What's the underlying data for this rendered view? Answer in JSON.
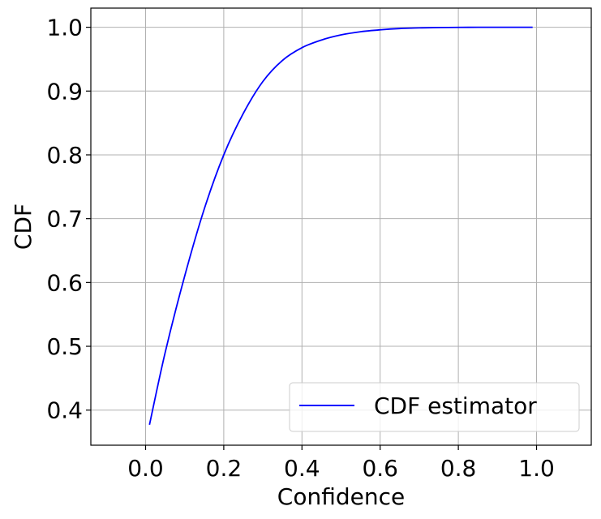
{
  "chart_data": {
    "type": "line",
    "title": "",
    "xlabel": "Confidence",
    "ylabel": "CDF",
    "xlim": [
      -0.14,
      1.14
    ],
    "ylim": [
      0.345,
      1.03
    ],
    "xticks": [
      0.0,
      0.2,
      0.4,
      0.6,
      0.8,
      1.0
    ],
    "xtick_labels": [
      "0.0",
      "0.2",
      "0.4",
      "0.6",
      "0.8",
      "1.0"
    ],
    "yticks": [
      0.4,
      0.5,
      0.6,
      0.7,
      0.8,
      0.9,
      1.0
    ],
    "ytick_labels": [
      "0.4",
      "0.5",
      "0.6",
      "0.7",
      "0.8",
      "0.9",
      "1.0"
    ],
    "grid": true,
    "legend_position": "lower-right",
    "series": [
      {
        "name": "CDF estimator",
        "color": "#0000ff",
        "x": [
          0.01,
          0.05,
          0.1,
          0.15,
          0.2,
          0.25,
          0.3,
          0.35,
          0.4,
          0.45,
          0.5,
          0.55,
          0.6,
          0.65,
          0.7,
          0.75,
          0.8,
          0.85,
          0.9,
          0.95,
          0.99
        ],
        "y": [
          0.377,
          0.49,
          0.61,
          0.715,
          0.8,
          0.865,
          0.915,
          0.948,
          0.968,
          0.98,
          0.988,
          0.993,
          0.996,
          0.998,
          0.999,
          0.9995,
          0.9998,
          1.0,
          1.0,
          1.0,
          1.0
        ]
      }
    ]
  }
}
